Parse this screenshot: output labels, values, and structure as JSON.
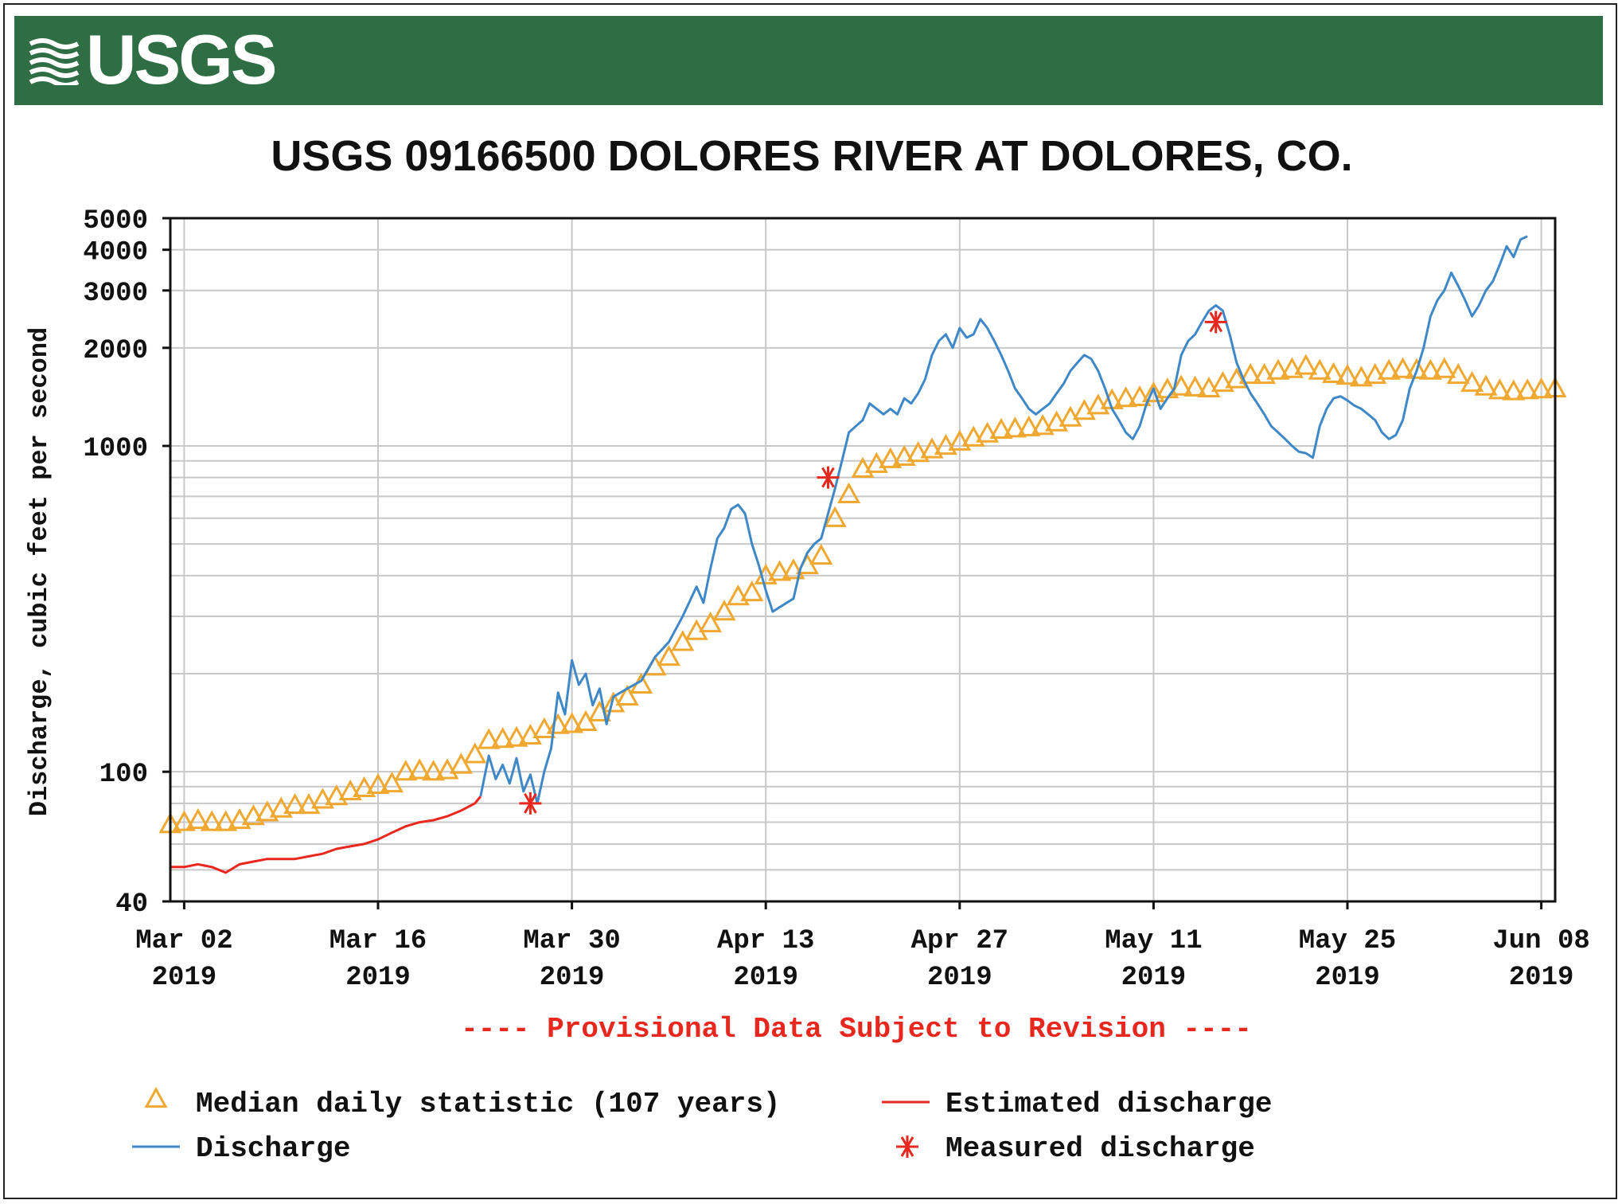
{
  "header": {
    "logo_text": "USGS"
  },
  "chart_data": {
    "type": "line",
    "title": "USGS 09166500 DOLORES RIVER AT DOLORES, CO.",
    "ylabel": "Discharge, cubic feet per second",
    "xlabel": "",
    "yscale": "log",
    "ylim": [
      40,
      5000
    ],
    "xlim": [
      0,
      100
    ],
    "yticks": [
      {
        "value": 5000,
        "label": "5000"
      },
      {
        "value": 4000,
        "label": "4000"
      },
      {
        "value": 3000,
        "label": "3000"
      },
      {
        "value": 2000,
        "label": "2000"
      },
      {
        "value": 1000,
        "label": "1000"
      },
      {
        "value": 100,
        "label": "100"
      },
      {
        "value": 40,
        "label": "40"
      }
    ],
    "minor_yticks": [
      50,
      60,
      70,
      80,
      90,
      200,
      300,
      400,
      500,
      600,
      700,
      800,
      900
    ],
    "xticks": [
      {
        "day": 1,
        "label1": "Mar 02",
        "label2": "2019"
      },
      {
        "day": 15,
        "label1": "Mar 16",
        "label2": "2019"
      },
      {
        "day": 29,
        "label1": "Mar 30",
        "label2": "2019"
      },
      {
        "day": 43,
        "label1": "Apr 13",
        "label2": "2019"
      },
      {
        "day": 57,
        "label1": "Apr 27",
        "label2": "2019"
      },
      {
        "day": 71,
        "label1": "May 11",
        "label2": "2019"
      },
      {
        "day": 85,
        "label1": "May 25",
        "label2": "2019"
      },
      {
        "day": 99,
        "label1": "Jun 08",
        "label2": "2019"
      }
    ],
    "provisional_note": "---- Provisional Data Subject to Revision ----",
    "colors": {
      "median": "#f0a830",
      "estimated": "#e8281e",
      "discharge": "#3f88c8",
      "measured": "#e8281e",
      "provisional": "#e8281e",
      "grid": "#c8c8c8"
    },
    "legend": [
      {
        "key": "median",
        "label": "Median daily statistic (107 years)"
      },
      {
        "key": "estimated",
        "label": "Estimated discharge"
      },
      {
        "key": "discharge",
        "label": "Discharge"
      },
      {
        "key": "measured",
        "label": "Measured discharge"
      }
    ],
    "series": [
      {
        "name": "Median daily statistic (107 years)",
        "key": "median",
        "points": [
          [
            0,
            69
          ],
          [
            1,
            70
          ],
          [
            2,
            71
          ],
          [
            3,
            70
          ],
          [
            4,
            70
          ],
          [
            5,
            71
          ],
          [
            6,
            73
          ],
          [
            7,
            75
          ],
          [
            8,
            77
          ],
          [
            9,
            79
          ],
          [
            10,
            79
          ],
          [
            11,
            82
          ],
          [
            12,
            84
          ],
          [
            13,
            87
          ],
          [
            14,
            89
          ],
          [
            15,
            91
          ],
          [
            16,
            92
          ],
          [
            17,
            100
          ],
          [
            18,
            101
          ],
          [
            19,
            100
          ],
          [
            20,
            101
          ],
          [
            21,
            105
          ],
          [
            22,
            113
          ],
          [
            23,
            125
          ],
          [
            24,
            126
          ],
          [
            25,
            127
          ],
          [
            26,
            129
          ],
          [
            27,
            135
          ],
          [
            28,
            139
          ],
          [
            29,
            140
          ],
          [
            30,
            142
          ],
          [
            31,
            152
          ],
          [
            32,
            162
          ],
          [
            33,
            170
          ],
          [
            34,
            185
          ],
          [
            35,
            210
          ],
          [
            36,
            225
          ],
          [
            37,
            250
          ],
          [
            38,
            270
          ],
          [
            39,
            285
          ],
          [
            40,
            310
          ],
          [
            41,
            345
          ],
          [
            42,
            355
          ],
          [
            43,
            400
          ],
          [
            44,
            410
          ],
          [
            45,
            415
          ],
          [
            46,
            430
          ],
          [
            47,
            460
          ],
          [
            48,
            600
          ],
          [
            49,
            710
          ],
          [
            50,
            850
          ],
          [
            51,
            880
          ],
          [
            52,
            910
          ],
          [
            53,
            925
          ],
          [
            54,
            950
          ],
          [
            55,
            975
          ],
          [
            56,
            1000
          ],
          [
            57,
            1030
          ],
          [
            58,
            1060
          ],
          [
            59,
            1090
          ],
          [
            60,
            1120
          ],
          [
            61,
            1130
          ],
          [
            62,
            1140
          ],
          [
            63,
            1150
          ],
          [
            64,
            1180
          ],
          [
            65,
            1220
          ],
          [
            66,
            1280
          ],
          [
            67,
            1330
          ],
          [
            68,
            1380
          ],
          [
            69,
            1400
          ],
          [
            70,
            1410
          ],
          [
            71,
            1450
          ],
          [
            72,
            1490
          ],
          [
            73,
            1520
          ],
          [
            74,
            1510
          ],
          [
            75,
            1500
          ],
          [
            76,
            1560
          ],
          [
            77,
            1600
          ],
          [
            78,
            1650
          ],
          [
            79,
            1650
          ],
          [
            80,
            1700
          ],
          [
            81,
            1720
          ],
          [
            82,
            1760
          ],
          [
            83,
            1700
          ],
          [
            84,
            1660
          ],
          [
            85,
            1640
          ],
          [
            86,
            1620
          ],
          [
            87,
            1650
          ],
          [
            88,
            1700
          ],
          [
            89,
            1720
          ],
          [
            90,
            1710
          ],
          [
            91,
            1700
          ],
          [
            92,
            1720
          ],
          [
            93,
            1650
          ],
          [
            94,
            1560
          ],
          [
            95,
            1520
          ],
          [
            96,
            1480
          ],
          [
            97,
            1470
          ],
          [
            98,
            1480
          ],
          [
            99,
            1490
          ],
          [
            100,
            1500
          ]
        ]
      },
      {
        "name": "Estimated discharge",
        "key": "estimated",
        "points": [
          [
            0,
            51
          ],
          [
            1,
            51
          ],
          [
            2,
            52
          ],
          [
            3,
            51
          ],
          [
            4,
            49
          ],
          [
            5,
            52
          ],
          [
            6,
            53
          ],
          [
            7,
            54
          ],
          [
            8,
            54
          ],
          [
            9,
            54
          ],
          [
            10,
            55
          ],
          [
            11,
            56
          ],
          [
            12,
            58
          ],
          [
            13,
            59
          ],
          [
            14,
            60
          ],
          [
            15,
            62
          ],
          [
            16,
            65
          ],
          [
            17,
            68
          ],
          [
            18,
            70
          ],
          [
            19,
            71
          ],
          [
            20,
            73
          ],
          [
            21,
            76
          ],
          [
            22,
            80
          ],
          [
            22.4,
            84
          ]
        ]
      },
      {
        "name": "Discharge",
        "key": "discharge",
        "points": [
          [
            22.4,
            84
          ],
          [
            23,
            112
          ],
          [
            23.5,
            95
          ],
          [
            24,
            105
          ],
          [
            24.5,
            92
          ],
          [
            25,
            110
          ],
          [
            25.5,
            87
          ],
          [
            26,
            98
          ],
          [
            26.5,
            80
          ],
          [
            27,
            100
          ],
          [
            27.5,
            118
          ],
          [
            28,
            175
          ],
          [
            28.5,
            150
          ],
          [
            29,
            220
          ],
          [
            29.5,
            185
          ],
          [
            30,
            200
          ],
          [
            30.5,
            160
          ],
          [
            31,
            180
          ],
          [
            31.5,
            140
          ],
          [
            32,
            170
          ],
          [
            33,
            180
          ],
          [
            34,
            190
          ],
          [
            35,
            225
          ],
          [
            36,
            250
          ],
          [
            37,
            300
          ],
          [
            38,
            370
          ],
          [
            38.5,
            330
          ],
          [
            39,
            420
          ],
          [
            39.5,
            520
          ],
          [
            40,
            560
          ],
          [
            40.5,
            640
          ],
          [
            41,
            660
          ],
          [
            41.5,
            620
          ],
          [
            42,
            500
          ],
          [
            42.5,
            430
          ],
          [
            43,
            360
          ],
          [
            43.5,
            310
          ],
          [
            44,
            320
          ],
          [
            45,
            340
          ],
          [
            45.5,
            420
          ],
          [
            46,
            470
          ],
          [
            46.5,
            500
          ],
          [
            47,
            520
          ],
          [
            47.5,
            620
          ],
          [
            48,
            740
          ],
          [
            48.5,
            900
          ],
          [
            49,
            1100
          ],
          [
            49.5,
            1150
          ],
          [
            50,
            1200
          ],
          [
            50.5,
            1350
          ],
          [
            51,
            1300
          ],
          [
            51.5,
            1250
          ],
          [
            52,
            1300
          ],
          [
            52.5,
            1250
          ],
          [
            53,
            1400
          ],
          [
            53.5,
            1350
          ],
          [
            54,
            1450
          ],
          [
            54.5,
            1600
          ],
          [
            55,
            1900
          ],
          [
            55.5,
            2100
          ],
          [
            56,
            2200
          ],
          [
            56.5,
            2000
          ],
          [
            57,
            2300
          ],
          [
            57.5,
            2150
          ],
          [
            58,
            2200
          ],
          [
            58.5,
            2450
          ],
          [
            59,
            2300
          ],
          [
            59.5,
            2100
          ],
          [
            60,
            1900
          ],
          [
            60.5,
            1700
          ],
          [
            61,
            1500
          ],
          [
            61.5,
            1400
          ],
          [
            62,
            1300
          ],
          [
            62.5,
            1250
          ],
          [
            63,
            1300
          ],
          [
            63.5,
            1350
          ],
          [
            64,
            1450
          ],
          [
            64.5,
            1550
          ],
          [
            65,
            1700
          ],
          [
            65.5,
            1800
          ],
          [
            66,
            1900
          ],
          [
            66.5,
            1850
          ],
          [
            67,
            1700
          ],
          [
            67.5,
            1500
          ],
          [
            68,
            1300
          ],
          [
            68.5,
            1200
          ],
          [
            69,
            1100
          ],
          [
            69.5,
            1050
          ],
          [
            70,
            1150
          ],
          [
            70.5,
            1350
          ],
          [
            71,
            1500
          ],
          [
            71.5,
            1300
          ],
          [
            72,
            1400
          ],
          [
            72.5,
            1500
          ],
          [
            73,
            1900
          ],
          [
            73.5,
            2100
          ],
          [
            74,
            2200
          ],
          [
            74.5,
            2400
          ],
          [
            75,
            2600
          ],
          [
            75.5,
            2700
          ],
          [
            76,
            2600
          ],
          [
            76.5,
            2200
          ],
          [
            77,
            1800
          ],
          [
            77.5,
            1600
          ],
          [
            78,
            1450
          ],
          [
            78.5,
            1350
          ],
          [
            79,
            1250
          ],
          [
            79.5,
            1150
          ],
          [
            80,
            1100
          ],
          [
            80.5,
            1050
          ],
          [
            81,
            1000
          ],
          [
            81.5,
            960
          ],
          [
            82,
            950
          ],
          [
            82.5,
            920
          ],
          [
            83,
            1150
          ],
          [
            83.5,
            1300
          ],
          [
            84,
            1400
          ],
          [
            84.5,
            1420
          ],
          [
            85,
            1380
          ],
          [
            85.5,
            1330
          ],
          [
            86,
            1300
          ],
          [
            86.5,
            1250
          ],
          [
            87,
            1200
          ],
          [
            87.5,
            1100
          ],
          [
            88,
            1050
          ],
          [
            88.5,
            1080
          ],
          [
            89,
            1200
          ],
          [
            89.5,
            1500
          ],
          [
            90,
            1700
          ],
          [
            90.5,
            2000
          ],
          [
            91,
            2500
          ],
          [
            91.5,
            2800
          ],
          [
            92,
            3000
          ],
          [
            92.5,
            3400
          ],
          [
            93,
            3100
          ],
          [
            93.5,
            2800
          ],
          [
            94,
            2500
          ],
          [
            94.5,
            2700
          ],
          [
            95,
            3000
          ],
          [
            95.5,
            3200
          ],
          [
            96,
            3600
          ],
          [
            96.5,
            4100
          ],
          [
            97,
            3800
          ],
          [
            97.5,
            4300
          ],
          [
            98,
            4400
          ]
        ]
      },
      {
        "name": "Measured discharge",
        "key": "measured",
        "points": [
          [
            26,
            80
          ],
          [
            47.5,
            800
          ],
          [
            75.5,
            2400
          ]
        ]
      }
    ]
  }
}
